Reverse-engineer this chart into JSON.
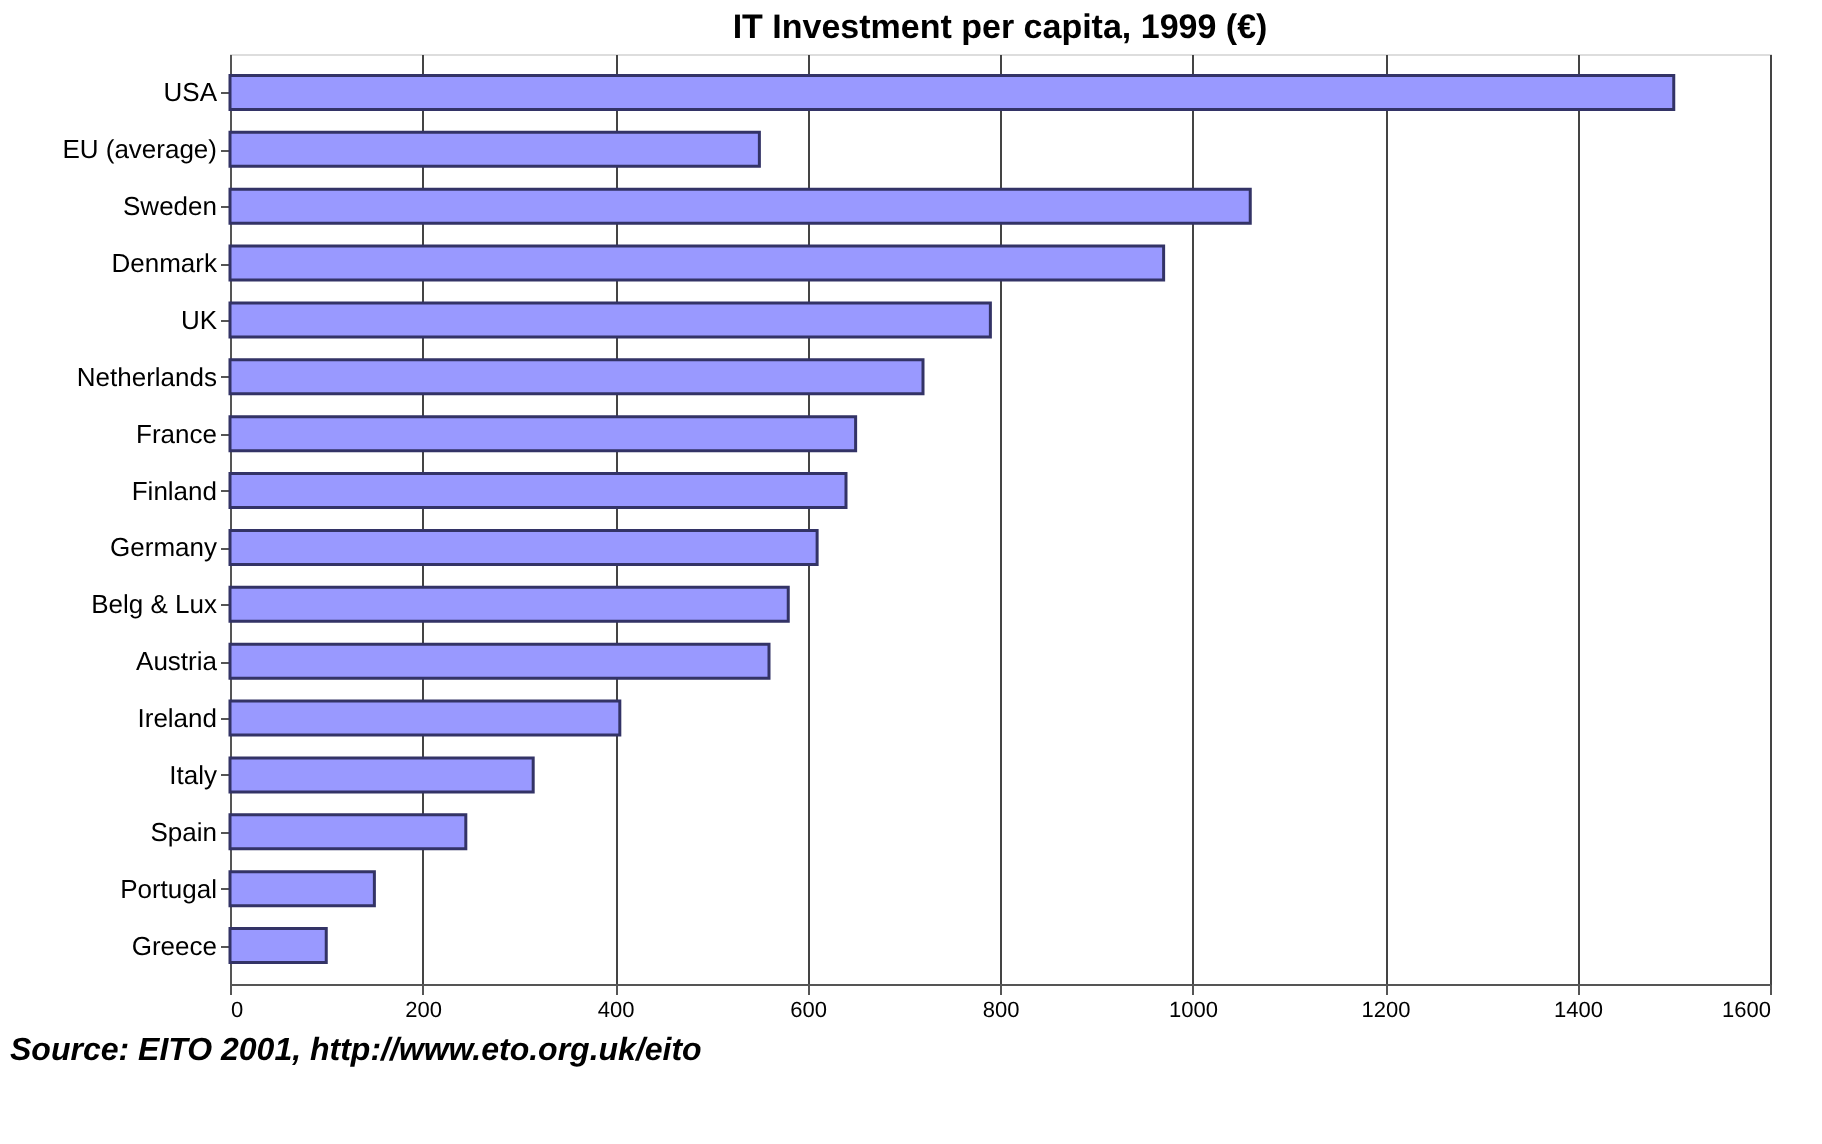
{
  "chart_data": {
    "type": "bar",
    "orientation": "horizontal",
    "title": "IT Investment per capita, 1999 (€)",
    "categories": [
      "USA",
      "EU (average)",
      "Sweden",
      "Denmark",
      "UK",
      "Netherlands",
      "France",
      "Finland",
      "Germany",
      "Belg & Lux",
      "Austria",
      "Ireland",
      "Italy",
      "Spain",
      "Portugal",
      "Greece"
    ],
    "values": [
      1500,
      550,
      1060,
      970,
      790,
      720,
      650,
      640,
      610,
      580,
      560,
      405,
      315,
      245,
      150,
      100
    ],
    "color": "#9999ff",
    "xlim": [
      0,
      1600
    ],
    "xticks": [
      0,
      200,
      400,
      600,
      800,
      1000,
      1200,
      1400,
      1600
    ],
    "grid": "x",
    "annotations": [
      "Source: EITO 2001, http://www.eto.org.uk/eito"
    ]
  }
}
